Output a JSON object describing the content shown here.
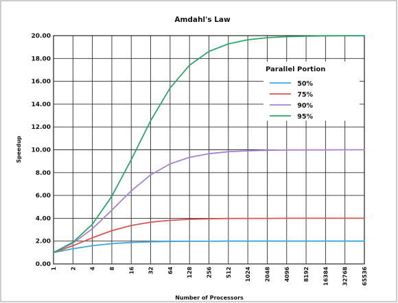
{
  "chart_data": {
    "type": "line",
    "title": "Amdahl's Law",
    "xlabel": "Number of Processors",
    "ylabel": "Speedup",
    "x": [
      "1",
      "2",
      "4",
      "8",
      "16",
      "32",
      "64",
      "128",
      "256",
      "512",
      "1024",
      "2048",
      "4096",
      "8192",
      "16384",
      "32768",
      "65536"
    ],
    "ylim": [
      0,
      20
    ],
    "yticks": [
      "0.00",
      "2.00",
      "4.00",
      "6.00",
      "8.00",
      "10.00",
      "12.00",
      "14.00",
      "16.00",
      "18.00",
      "20.00"
    ],
    "grid": true,
    "legend": {
      "title": "Parallel Portion",
      "placement": "top-right"
    },
    "series": [
      {
        "name": "50%",
        "color": "#3aa6e0",
        "values": [
          1.0,
          1.33,
          1.6,
          1.78,
          1.88,
          1.94,
          1.97,
          1.98,
          1.99,
          2.0,
          2.0,
          2.0,
          2.0,
          2.0,
          2.0,
          2.0,
          2.0
        ]
      },
      {
        "name": "75%",
        "color": "#d9534f",
        "values": [
          1.0,
          1.6,
          2.29,
          2.91,
          3.37,
          3.66,
          3.82,
          3.91,
          3.95,
          3.98,
          3.99,
          3.99,
          4.0,
          4.0,
          4.0,
          4.0,
          4.0
        ]
      },
      {
        "name": "90%",
        "color": "#a77fd6",
        "values": [
          1.0,
          1.82,
          3.08,
          4.71,
          6.4,
          7.8,
          8.77,
          9.34,
          9.66,
          9.83,
          9.91,
          9.96,
          9.98,
          9.99,
          9.99,
          10.0,
          10.0
        ]
      },
      {
        "name": "95%",
        "color": "#2aa66a",
        "values": [
          1.0,
          1.9,
          3.48,
          5.93,
          9.14,
          12.55,
          15.42,
          17.41,
          18.62,
          19.28,
          19.64,
          19.82,
          19.91,
          19.95,
          19.98,
          19.99,
          19.99
        ]
      }
    ]
  }
}
